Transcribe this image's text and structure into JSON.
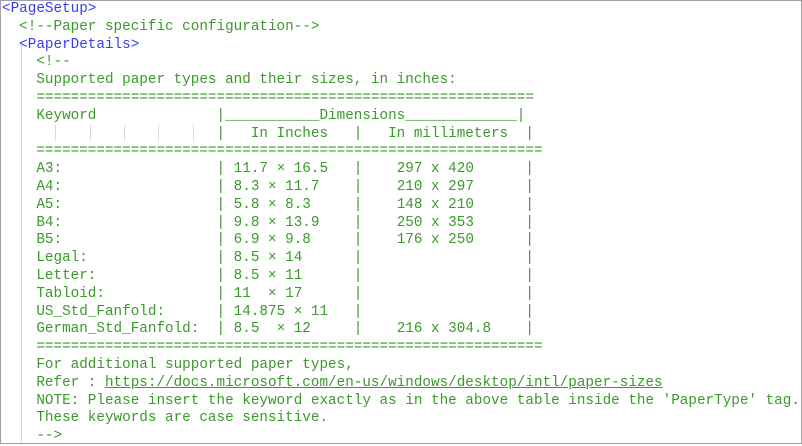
{
  "root_tag": "<PageSetup>",
  "comment_config": "<!--Paper specific configuration-->",
  "paper_details_tag": "<PaperDetails>",
  "comment_open": "<!--",
  "intro": "Supported paper types and their sizes, in inches:",
  "rule_top": "==========================================================",
  "header_row1": "Keyword              |___________Dimensions_____________|",
  "header_row2": "                     |   In Inches   |   In millimeters  |",
  "rule_mid": "===========================================================",
  "rows": [
    {
      "keyword": "A3:",
      "inches": "11.7 × 16.5",
      "mm": "297 x 420"
    },
    {
      "keyword": "A4:",
      "inches": "8.3 × 11.7",
      "mm": "210 x 297"
    },
    {
      "keyword": "A5:",
      "inches": "5.8 × 8.3",
      "mm": "148 x 210"
    },
    {
      "keyword": "B4:",
      "inches": "9.8 × 13.9",
      "mm": "250 x 353"
    },
    {
      "keyword": "B5:",
      "inches": "6.9 × 9.8",
      "mm": "176 x 250"
    },
    {
      "keyword": "Legal:",
      "inches": "8.5 × 14",
      "mm": ""
    },
    {
      "keyword": "Letter:",
      "inches": "8.5 × 11",
      "mm": ""
    },
    {
      "keyword": "Tabloid:",
      "inches": "11  × 17",
      "mm": ""
    },
    {
      "keyword": "US_Std_Fanfold:",
      "inches": "14.875 × 11",
      "mm": ""
    },
    {
      "keyword": "German_Std_Fanfold:",
      "inches": "8.5  × 12",
      "mm": "216 x 304.8"
    }
  ],
  "rule_bottom": "===========================================================",
  "additional": "For additional supported paper types,",
  "refer_prefix": "Refer : ",
  "refer_url": "https://docs.microsoft.com/en-us/windows/desktop/intl/paper-sizes",
  "note": "NOTE: Please insert the keyword exactly as in the above table inside the 'PaperType' tag.",
  "case_note": "These keywords are case sensitive.",
  "comment_close": "-->",
  "colors": {
    "tag": "#3a3aff",
    "comment": "#3a9a2a"
  }
}
